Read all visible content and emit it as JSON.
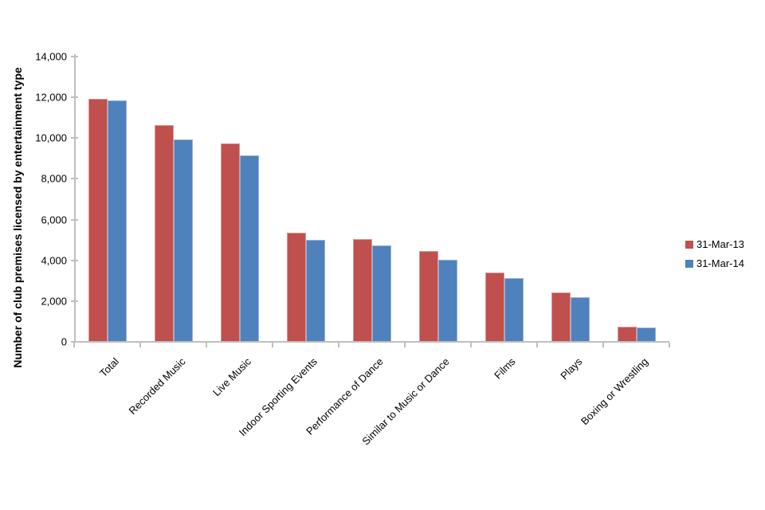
{
  "chart_data": {
    "type": "bar",
    "title": "",
    "xlabel": "",
    "ylabel": "Number of club premises licensed by entertainment type",
    "ylim": [
      0,
      14000
    ],
    "ytick_step": 2000,
    "ytick_labels": [
      "0",
      "2,000",
      "4,000",
      "6,000",
      "8,000",
      "10,000",
      "12,000",
      "14,000"
    ],
    "grid": false,
    "legend_position": "right",
    "categories": [
      "Total",
      "Recorded Music",
      "Live Music",
      "Indoor Sporting Events",
      "Performance of Dance",
      "Similar to Music or Dance",
      "Films",
      "Plays",
      "Boxing or Wrestling"
    ],
    "series": [
      {
        "name": "31-Mar-13",
        "color": "#c0504d",
        "border_color": "#d99795",
        "values": [
          11900,
          10600,
          9700,
          5300,
          5000,
          4400,
          3350,
          2400,
          700
        ]
      },
      {
        "name": "31-Mar-14",
        "color": "#4f81bd",
        "border_color": "#95b3d7",
        "values": [
          11800,
          9900,
          9100,
          4950,
          4700,
          4000,
          3100,
          2150,
          650
        ]
      }
    ]
  }
}
